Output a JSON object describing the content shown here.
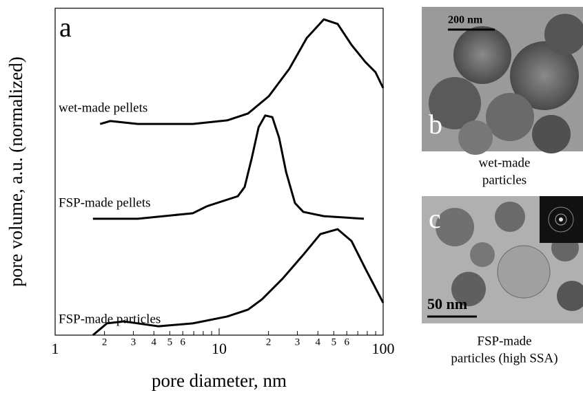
{
  "chart_data": {
    "type": "line",
    "panel_label": "a",
    "xlabel": "pore diameter, nm",
    "ylabel": "pore volume, a.u. (normalized)",
    "xscale": "log",
    "xlim": [
      1,
      100
    ],
    "ylim": [
      0,
      10
    ],
    "xticks": [
      1,
      10,
      100
    ],
    "xminor_ticks": [
      {
        "value": 2,
        "label": "2"
      },
      {
        "value": 3,
        "label": "3"
      },
      {
        "value": 4,
        "label": "4"
      },
      {
        "value": 5,
        "label": "5"
      },
      {
        "value": 6,
        "label": "6"
      },
      {
        "value": 7
      },
      {
        "value": 8
      },
      {
        "value": 9
      },
      {
        "value": 20,
        "label": "2"
      },
      {
        "value": 30,
        "label": "3"
      },
      {
        "value": 40,
        "label": "4"
      },
      {
        "value": 50,
        "label": "5"
      },
      {
        "value": 60,
        "label": "6"
      },
      {
        "value": 70
      },
      {
        "value": 80
      },
      {
        "value": 90
      }
    ],
    "series": [
      {
        "name": "wet-made pellets",
        "color": "#000000",
        "x": [
          1.88,
          2.17,
          3.19,
          6.92,
          11.2,
          15.0,
          20.1,
          26.8,
          34.2,
          43.5,
          52.8,
          64.1,
          77.8,
          89.9,
          100
        ],
        "values": [
          6.46,
          6.55,
          6.46,
          6.46,
          6.57,
          6.78,
          7.31,
          8.15,
          9.09,
          9.66,
          9.52,
          8.88,
          8.36,
          8.04,
          7.56
        ]
      },
      {
        "name": "FSP-made pellets",
        "color": "#000000",
        "x": [
          1.7,
          3.19,
          6.92,
          8.4,
          13.0,
          14.3,
          15.8,
          17.4,
          19.1,
          21.1,
          23.2,
          25.6,
          29.0,
          32.6,
          43.5,
          76.3
        ],
        "values": [
          3.56,
          3.56,
          3.73,
          3.94,
          4.25,
          4.53,
          5.41,
          6.36,
          6.72,
          6.67,
          6.04,
          4.99,
          4.04,
          3.77,
          3.64,
          3.56
        ]
      },
      {
        "name": "FSP-made particles",
        "color": "#000000",
        "x": [
          1.7,
          2.07,
          2.63,
          4.27,
          6.92,
          11.2,
          15.0,
          18.2,
          24.4,
          32.6,
          41.4,
          52.8,
          64.1,
          77.8,
          100
        ],
        "values": [
          0,
          0.36,
          0.42,
          0.27,
          0.36,
          0.57,
          0.78,
          1.09,
          1.73,
          2.46,
          3.09,
          3.24,
          2.88,
          2.04,
          0.99
        ]
      }
    ]
  },
  "images": [
    {
      "panel_label": "b",
      "scale_bar": "200 nm",
      "caption": [
        "wet-made",
        "particles"
      ]
    },
    {
      "panel_label": "c",
      "scale_bar": "50 nm",
      "caption": [
        "FSP-made",
        "particles (high SSA)"
      ]
    }
  ]
}
